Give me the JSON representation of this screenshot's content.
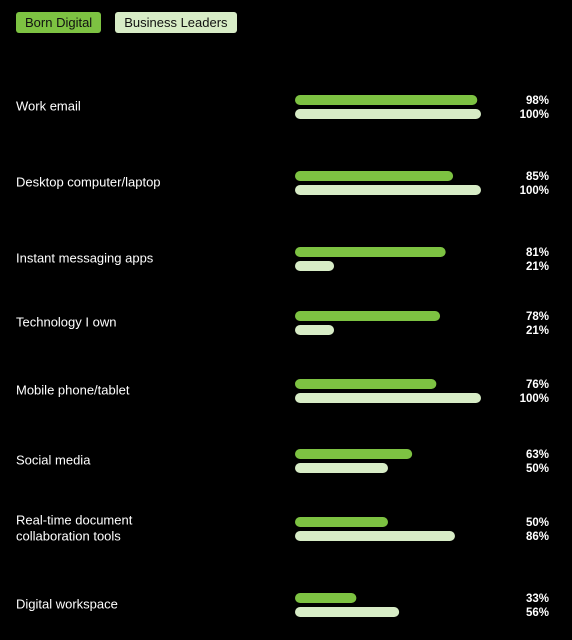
{
  "legend": [
    {
      "label": "Born Digital",
      "color": "#7dc242"
    },
    {
      "label": "Business Leaders",
      "color": "#d7ecc6"
    }
  ],
  "chart_data": {
    "type": "bar",
    "orientation": "horizontal",
    "categories": [
      [
        "Work email"
      ],
      [
        "Desktop computer/laptop"
      ],
      [
        "Instant messaging apps"
      ],
      [
        "Technology I own"
      ],
      [
        "Mobile phone/tablet"
      ],
      [
        "Social media"
      ],
      [
        "Real-time document",
        "collaboration tools"
      ],
      [
        "Digital workspace"
      ]
    ],
    "series": [
      {
        "name": "Born Digital",
        "color": "#7dc242",
        "values": [
          98,
          85,
          81,
          78,
          76,
          63,
          50,
          33
        ]
      },
      {
        "name": "Business Leaders",
        "color": "#d7ecc6",
        "values": [
          100,
          100,
          21,
          21,
          100,
          50,
          86,
          56
        ]
      }
    ],
    "value_suffix": "%",
    "xlim": [
      0,
      100
    ],
    "legend_position": "top-left"
  }
}
